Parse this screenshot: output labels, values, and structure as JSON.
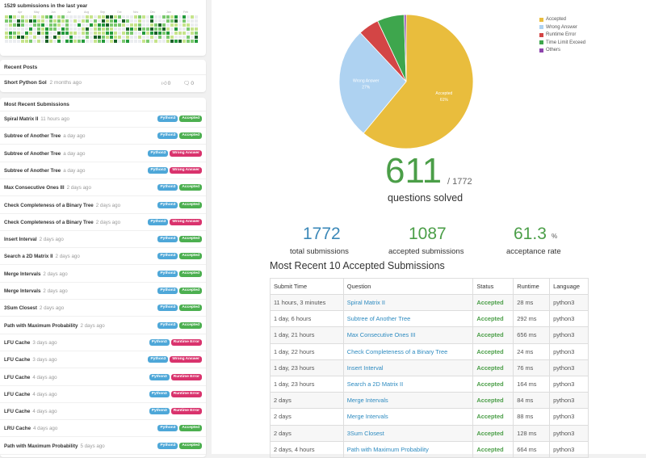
{
  "calendar": {
    "title": "1529 submissions in the last year",
    "months": [
      "Apr",
      "May",
      "Jun",
      "Jul",
      "Aug",
      "Sep",
      "Oct",
      "Nov",
      "Dec",
      "Jan",
      "Feb"
    ],
    "colors": [
      "#ebedf0",
      "#c6e48b",
      "#7bc96f",
      "#239a3b",
      "#196127"
    ]
  },
  "recent_posts": {
    "title": "Recent Posts",
    "items": [
      {
        "title": "Short Python Sol",
        "time": "2 months ago",
        "likes": "0",
        "comments": "0"
      }
    ]
  },
  "recent_submissions": {
    "title": "Most Recent Submissions",
    "items": [
      {
        "title": "Spiral Matrix II",
        "time": "11 hours ago",
        "lang": "Python3",
        "status": "Accepted"
      },
      {
        "title": "Subtree of Another Tree",
        "time": "a day ago",
        "lang": "Python3",
        "status": "Accepted"
      },
      {
        "title": "Subtree of Another Tree",
        "time": "a day ago",
        "lang": "Python3",
        "status": "Wrong Answer"
      },
      {
        "title": "Subtree of Another Tree",
        "time": "a day ago",
        "lang": "Python3",
        "status": "Wrong Answer"
      },
      {
        "title": "Max Consecutive Ones III",
        "time": "2 days ago",
        "lang": "Python3",
        "status": "Accepted"
      },
      {
        "title": "Check Completeness of a Binary Tree",
        "time": "2 days ago",
        "lang": "Python3",
        "status": "Accepted"
      },
      {
        "title": "Check Completeness of a Binary Tree",
        "time": "2 days ago",
        "lang": "Python3",
        "status": "Wrong Answer"
      },
      {
        "title": "Insert Interval",
        "time": "2 days ago",
        "lang": "Python3",
        "status": "Accepted"
      },
      {
        "title": "Search a 2D Matrix II",
        "time": "2 days ago",
        "lang": "Python3",
        "status": "Accepted"
      },
      {
        "title": "Merge Intervals",
        "time": "2 days ago",
        "lang": "Python3",
        "status": "Accepted"
      },
      {
        "title": "Merge Intervals",
        "time": "2 days ago",
        "lang": "Python3",
        "status": "Accepted"
      },
      {
        "title": "3Sum Closest",
        "time": "2 days ago",
        "lang": "Python3",
        "status": "Accepted"
      },
      {
        "title": "Path with Maximum Probability",
        "time": "2 days ago",
        "lang": "Python3",
        "status": "Accepted"
      },
      {
        "title": "LFU Cache",
        "time": "3 days ago",
        "lang": "Python3",
        "status": "Runtime Error"
      },
      {
        "title": "LFU Cache",
        "time": "3 days ago",
        "lang": "Python3",
        "status": "Wrong Answer"
      },
      {
        "title": "LFU Cache",
        "time": "4 days ago",
        "lang": "Python3",
        "status": "Runtime Error"
      },
      {
        "title": "LFU Cache",
        "time": "4 days ago",
        "lang": "Python3",
        "status": "Runtime Error"
      },
      {
        "title": "LFU Cache",
        "time": "4 days ago",
        "lang": "Python3",
        "status": "Runtime Error"
      },
      {
        "title": "LRU Cache",
        "time": "4 days ago",
        "lang": "Python3",
        "status": "Accepted"
      },
      {
        "title": "Path with Maximum Probability",
        "time": "5 days ago",
        "lang": "Python3",
        "status": "Accepted"
      }
    ]
  },
  "chart_data": {
    "type": "pie",
    "slices": [
      {
        "name": "Accepted",
        "value": 61,
        "label": "Accepted",
        "pct": "61%",
        "color": "#e9bd3d"
      },
      {
        "name": "Wrong Answer",
        "value": 27,
        "label": "Wrong Answer",
        "pct": "27%",
        "color": "#aed2f1"
      },
      {
        "name": "Runtime Error",
        "value": 5,
        "label": "",
        "pct": "",
        "color": "#d34545"
      },
      {
        "name": "Time Limit Exceed",
        "value": 6.5,
        "label": "",
        "pct": "",
        "color": "#3ea64d"
      },
      {
        "name": "Others",
        "value": 0.5,
        "label": "",
        "pct": "",
        "color": "#8e44ad"
      }
    ],
    "legend_position": "top-right"
  },
  "summary": {
    "solved": "611",
    "total": "/ 1772",
    "solved_label": "questions solved",
    "total_submissions": "1772",
    "total_submissions_label": "total submissions",
    "accepted_submissions": "1087",
    "accepted_submissions_label": "accepted submissions",
    "acceptance_rate": "61.3",
    "acceptance_unit": "%",
    "acceptance_rate_label": "acceptance rate",
    "colors": {
      "blue": "#3b88b8",
      "green": "#4b9e48"
    }
  },
  "accepted_table": {
    "title": "Most Recent 10 Accepted Submissions",
    "headers": [
      "Submit Time",
      "Question",
      "Status",
      "Runtime",
      "Language"
    ],
    "rows": [
      [
        "11 hours, 3 minutes",
        "Spiral Matrix II",
        "Accepted",
        "28 ms",
        "python3"
      ],
      [
        "1 day, 6 hours",
        "Subtree of Another Tree",
        "Accepted",
        "292 ms",
        "python3"
      ],
      [
        "1 day, 21 hours",
        "Max Consecutive Ones III",
        "Accepted",
        "656 ms",
        "python3"
      ],
      [
        "1 day, 22 hours",
        "Check Completeness of a Binary Tree",
        "Accepted",
        "24 ms",
        "python3"
      ],
      [
        "1 day, 23 hours",
        "Insert Interval",
        "Accepted",
        "76 ms",
        "python3"
      ],
      [
        "1 day, 23 hours",
        "Search a 2D Matrix II",
        "Accepted",
        "164 ms",
        "python3"
      ],
      [
        "2 days",
        "Merge Intervals",
        "Accepted",
        "84 ms",
        "python3"
      ],
      [
        "2 days",
        "Merge Intervals",
        "Accepted",
        "88 ms",
        "python3"
      ],
      [
        "2 days",
        "3Sum Closest",
        "Accepted",
        "128 ms",
        "python3"
      ],
      [
        "2 days, 4 hours",
        "Path with Maximum Probability",
        "Accepted",
        "664 ms",
        "python3"
      ]
    ]
  }
}
